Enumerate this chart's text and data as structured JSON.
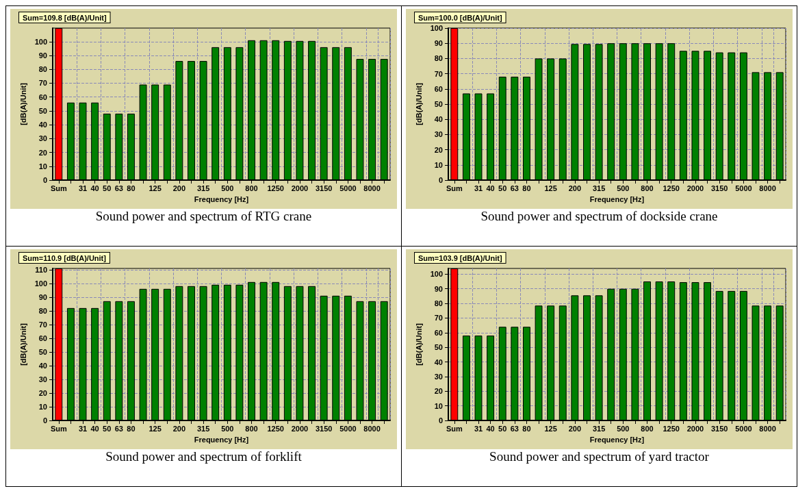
{
  "chart_data": [
    {
      "type": "bar",
      "title": "Sound power and spectrum of RTG crane",
      "xlabel": "Frequency [Hz]",
      "ylabel": "[dB(A)/Unit]",
      "annotations": [
        "Sum=109.8 [dB(A)/Unit]"
      ],
      "categories": [
        "Sum",
        null,
        "31",
        "40",
        "50",
        "63",
        "80",
        null,
        "125",
        null,
        "200",
        null,
        "315",
        null,
        "500",
        null,
        "800",
        null,
        "1250",
        null,
        "2000",
        null,
        "3150",
        null,
        "5000",
        null,
        "8000",
        null
      ],
      "values": [
        109.8,
        56,
        56,
        56,
        48,
        48,
        48,
        69,
        69,
        69,
        86,
        86,
        86,
        96,
        96,
        96,
        101,
        101,
        101,
        100.5,
        100.5,
        100.5,
        96,
        96,
        96,
        87.5,
        87.5,
        87.5
      ],
      "colors": [
        "#ff0000",
        "#008000",
        "#008000",
        "#008000",
        "#008000",
        "#008000",
        "#008000",
        "#008000",
        "#008000",
        "#008000",
        "#008000",
        "#008000",
        "#008000",
        "#008000",
        "#008000",
        "#008000",
        "#008000",
        "#008000",
        "#008000",
        "#008000",
        "#008000",
        "#008000",
        "#008000",
        "#008000",
        "#008000",
        "#008000",
        "#008000",
        "#008000"
      ],
      "ylim": [
        0,
        109.8
      ],
      "yticks": [
        0,
        10,
        20,
        30,
        40,
        50,
        60,
        70,
        80,
        90,
        100
      ],
      "grid": true
    },
    {
      "type": "bar",
      "title": "Sound power and spectrum of dockside crane",
      "xlabel": "Frequency [Hz]",
      "ylabel": "[dB(A)/Unit]",
      "annotations": [
        "Sum=100.0 [dB(A)/Unit]"
      ],
      "categories": [
        "Sum",
        null,
        "31",
        "40",
        "50",
        "63",
        "80",
        null,
        "125",
        null,
        "200",
        null,
        "315",
        null,
        "500",
        null,
        "800",
        null,
        "1250",
        null,
        "2000",
        null,
        "3150",
        null,
        "5000",
        null,
        "8000",
        null
      ],
      "values": [
        100,
        57,
        57,
        57,
        68,
        68,
        68,
        80,
        80,
        80,
        89.5,
        89.5,
        89.5,
        90,
        90,
        90,
        90,
        90,
        90,
        85,
        85,
        85,
        84,
        84,
        84,
        71,
        71,
        71
      ],
      "colors": [
        "#ff0000",
        "#008000",
        "#008000",
        "#008000",
        "#008000",
        "#008000",
        "#008000",
        "#008000",
        "#008000",
        "#008000",
        "#008000",
        "#008000",
        "#008000",
        "#008000",
        "#008000",
        "#008000",
        "#008000",
        "#008000",
        "#008000",
        "#008000",
        "#008000",
        "#008000",
        "#008000",
        "#008000",
        "#008000",
        "#008000",
        "#008000",
        "#008000"
      ],
      "ylim": [
        0,
        100
      ],
      "yticks": [
        0,
        10,
        20,
        30,
        40,
        50,
        60,
        70,
        80,
        90,
        100
      ],
      "grid": true
    },
    {
      "type": "bar",
      "title": "Sound power and spectrum of forklift",
      "xlabel": "Frequency [Hz]",
      "ylabel": "[dB(A)/Unit]",
      "annotations": [
        "Sum=110.9 [dB(A)/Unit]"
      ],
      "categories": [
        "Sum",
        null,
        "31",
        "40",
        "50",
        "63",
        "80",
        null,
        "125",
        null,
        "200",
        null,
        "315",
        null,
        "500",
        null,
        "800",
        null,
        "1250",
        null,
        "2000",
        null,
        "3150",
        null,
        "5000",
        null,
        "8000",
        null
      ],
      "values": [
        110.9,
        82,
        82,
        82,
        87,
        87,
        87,
        96,
        96,
        96,
        98,
        98,
        98,
        99,
        99,
        99,
        101,
        101,
        101,
        98,
        98,
        98,
        91,
        91,
        91,
        87,
        87,
        87
      ],
      "colors": [
        "#ff0000",
        "#008000",
        "#008000",
        "#008000",
        "#008000",
        "#008000",
        "#008000",
        "#008000",
        "#008000",
        "#008000",
        "#008000",
        "#008000",
        "#008000",
        "#008000",
        "#008000",
        "#008000",
        "#008000",
        "#008000",
        "#008000",
        "#008000",
        "#008000",
        "#008000",
        "#008000",
        "#008000",
        "#008000",
        "#008000",
        "#008000",
        "#008000"
      ],
      "ylim": [
        0,
        110.9
      ],
      "yticks": [
        0,
        10,
        20,
        30,
        40,
        50,
        60,
        70,
        80,
        90,
        100,
        110
      ],
      "grid": true
    },
    {
      "type": "bar",
      "title": "Sound power and spectrum of yard tractor",
      "xlabel": "Frequency [Hz]",
      "ylabel": "[dB(A)/Unit]",
      "annotations": [
        "Sum=103.9 [dB(A)/Unit]"
      ],
      "categories": [
        "Sum",
        null,
        "31",
        "40",
        "50",
        "63",
        "80",
        null,
        "125",
        null,
        "200",
        null,
        "315",
        null,
        "500",
        null,
        "800",
        null,
        "1250",
        null,
        "2000",
        null,
        "3150",
        null,
        "5000",
        null,
        "8000",
        null
      ],
      "values": [
        103.9,
        58,
        58,
        58,
        64,
        64,
        64,
        78.5,
        78.5,
        78.5,
        85.5,
        85.5,
        85.5,
        90,
        90,
        90,
        95,
        95,
        95,
        94.5,
        94.5,
        94.5,
        88.5,
        88.5,
        88.5,
        78.5,
        78.5,
        78.5
      ],
      "colors": [
        "#ff0000",
        "#008000",
        "#008000",
        "#008000",
        "#008000",
        "#008000",
        "#008000",
        "#008000",
        "#008000",
        "#008000",
        "#008000",
        "#008000",
        "#008000",
        "#008000",
        "#008000",
        "#008000",
        "#008000",
        "#008000",
        "#008000",
        "#008000",
        "#008000",
        "#008000",
        "#008000",
        "#008000",
        "#008000",
        "#008000",
        "#008000",
        "#008000"
      ],
      "ylim": [
        0,
        103.9
      ],
      "yticks": [
        0,
        10,
        20,
        30,
        40,
        50,
        60,
        70,
        80,
        90,
        100
      ],
      "grid": true
    }
  ]
}
